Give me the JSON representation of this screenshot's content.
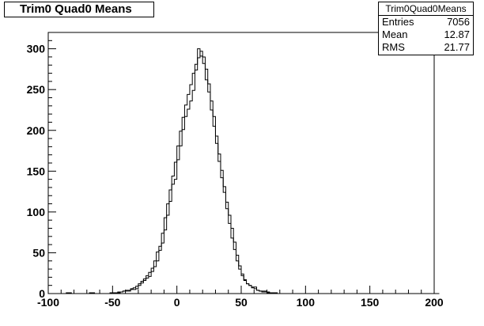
{
  "title": "Trim0 Quad0 Means",
  "stats": {
    "name": "Trim0Quad0Means",
    "rows": [
      {
        "label": "Entries",
        "value": "7056"
      },
      {
        "label": "Mean",
        "value": "12.87"
      },
      {
        "label": "RMS",
        "value": "21.77"
      }
    ]
  },
  "chart_data": {
    "type": "histogram",
    "title": "Trim0 Quad0 Means",
    "xlim": [
      -100,
      200
    ],
    "ylim": [
      0,
      320
    ],
    "x_ticks": [
      -100,
      -50,
      0,
      50,
      100,
      150,
      200
    ],
    "y_ticks": [
      0,
      50,
      100,
      150,
      200,
      250,
      300
    ],
    "bin_width": 2,
    "x_start": -100,
    "series": [
      {
        "values": [
          0,
          0,
          0,
          0,
          0,
          0,
          0,
          1,
          0,
          0,
          0,
          0,
          0,
          0,
          0,
          0,
          1,
          0,
          0,
          0,
          0,
          0,
          0,
          0,
          1,
          0,
          1,
          1,
          2,
          3,
          3,
          3,
          5,
          5,
          6,
          10,
          13,
          16,
          19,
          21,
          27,
          33,
          40,
          53,
          62,
          78,
          96,
          113,
          134,
          140,
          164,
          181,
          201,
          217,
          226,
          236,
          249,
          274,
          289,
          297,
          290,
          275,
          257,
          236,
          217,
          193,
          171,
          151,
          131,
          112,
          96,
          80,
          63,
          47,
          34,
          24,
          17,
          12,
          10,
          8,
          8,
          4,
          3,
          3,
          3,
          2,
          1,
          1,
          1,
          0,
          0,
          0,
          0,
          0,
          0,
          0,
          0,
          0,
          0,
          0,
          0,
          0,
          0,
          0,
          0,
          0,
          0,
          0,
          0,
          0,
          0,
          0,
          0,
          0,
          0,
          0,
          0,
          0,
          0,
          0,
          0,
          0,
          0,
          0,
          0,
          0,
          0,
          0,
          0,
          0,
          0,
          0,
          0,
          0,
          0,
          0,
          0,
          0,
          0,
          0,
          0,
          0,
          0,
          0,
          0,
          0,
          0,
          0,
          0,
          0,
          0,
          0
        ]
      },
      {
        "values": [
          0,
          0,
          0,
          0,
          0,
          0,
          0,
          0,
          1,
          0,
          0,
          0,
          0,
          0,
          0,
          0,
          0,
          1,
          0,
          0,
          0,
          0,
          0,
          0,
          0,
          1,
          1,
          2,
          2,
          3,
          4,
          4,
          6,
          7,
          9,
          12,
          15,
          18,
          22,
          26,
          31,
          40,
          51,
          58,
          74,
          93,
          110,
          127,
          144,
          161,
          181,
          199,
          216,
          231,
          244,
          256,
          270,
          281,
          300,
          291,
          282,
          262,
          247,
          225,
          205,
          184,
          162,
          142,
          124,
          104,
          86,
          68,
          54,
          40,
          30,
          22,
          16,
          12,
          10,
          7,
          6,
          4,
          3,
          2,
          2,
          1,
          1,
          0,
          1,
          0,
          0,
          0,
          0,
          0,
          0,
          0,
          0,
          0,
          0,
          0,
          0,
          0,
          0,
          0,
          0,
          0,
          0,
          0,
          0,
          0,
          0,
          0,
          0,
          0,
          0,
          0,
          0,
          0,
          0,
          0,
          0,
          0,
          0,
          0,
          0,
          0,
          0,
          0,
          0,
          0,
          0,
          0,
          0,
          0,
          0,
          0,
          0,
          0,
          0,
          0,
          0,
          0,
          0,
          0,
          0,
          0,
          0,
          0,
          0,
          0,
          0,
          0
        ]
      }
    ]
  }
}
